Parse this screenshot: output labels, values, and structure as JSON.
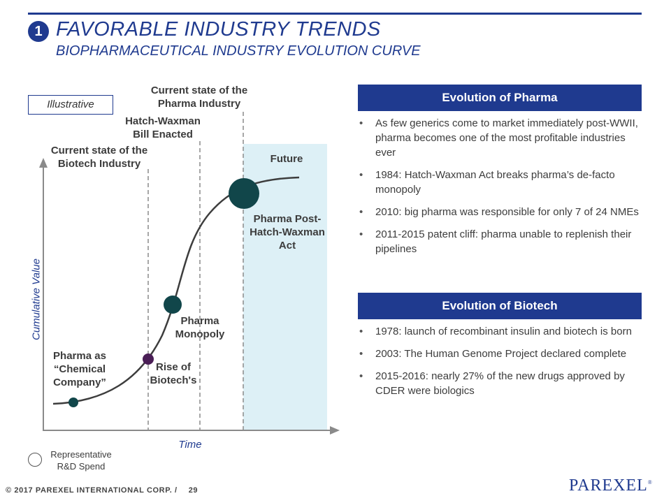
{
  "header": {
    "number": "1",
    "title": "FAVORABLE INDUSTRY TRENDS",
    "subtitle": "BIOPHARMACEUTICAL INDUSTRY EVOLUTION CURVE"
  },
  "chart": {
    "illustrative_label": "Illustrative",
    "y_axis_label": "Cumulative Value",
    "x_axis_label": "Time",
    "milestones": {
      "biotech_state": "Current state of the Biotech Industry",
      "hatch_waxman": "Hatch-Waxman Bill Enacted",
      "pharma_state": "Current state of the Pharma Industry",
      "future": "Future"
    },
    "stages": {
      "chemical": "Pharma as “Chemical Company”",
      "biotech_rise": "Rise of Biotech's",
      "monopoly": "Pharma Monopoly",
      "post_hw": "Pharma Post-Hatch-Waxman Act"
    },
    "legend": "Representative R&D Spend",
    "colors": {
      "stage_dark": "#11464a",
      "biotech": "#4a1e56",
      "future_bg": "#ddf0f6",
      "brand": "#1f3a8f"
    }
  },
  "pharma_panel": {
    "heading": "Evolution of Pharma",
    "bullets": [
      "As few generics come to market immediately post-WWII, pharma becomes one of the most profitable industries ever",
      "1984: Hatch-Waxman Act breaks pharma’s de-facto monopoly",
      "2010: big pharma was responsible for only 7 of 24 NMEs",
      "2011-2015 patent cliff: pharma unable to replenish their pipelines"
    ]
  },
  "biotech_panel": {
    "heading": "Evolution of Biotech",
    "bullets": [
      "1978: launch of recombinant insulin and biotech is born",
      "2003: The Human Genome Project declared complete",
      "2015-2016: nearly 27% of the new drugs approved by CDER were biologics"
    ]
  },
  "footer": {
    "copyright": "© 2017 PAREXEL INTERNATIONAL CORP. /",
    "page": "29",
    "logo": "PAREXEL",
    "logo_mark": "®"
  }
}
